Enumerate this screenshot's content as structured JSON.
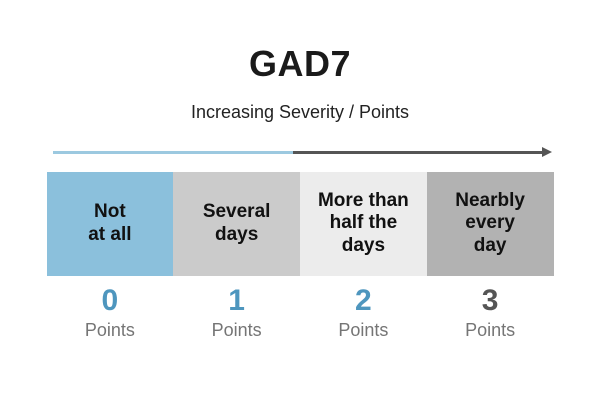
{
  "title": "GAD7",
  "subtitle": "Increasing Severity / Points",
  "arrow": {
    "low_color": "#9CC9E0",
    "high_color": "#555555",
    "direction": "left-to-right"
  },
  "colors": {
    "accent_blue": "#4E96BE",
    "box_blue": "#8BC0DC",
    "box_gray_light": "#ECECEC",
    "box_gray_medium": "#CBCBCB",
    "box_gray_dark": "#B2B2B2",
    "text_dark": "#111111",
    "points_gray": "#757575"
  },
  "scale": {
    "options": [
      {
        "label": "Not\nat all",
        "points": "0",
        "points_label": "Points",
        "box_color": "#8BC0DC",
        "number_color": "#4E96BE"
      },
      {
        "label": "Several\ndays",
        "points": "1",
        "points_label": "Points",
        "box_color": "#CBCBCB",
        "number_color": "#4E96BE"
      },
      {
        "label": "More than\nhalf the\ndays",
        "points": "2",
        "points_label": "Points",
        "box_color": "#ECECEC",
        "number_color": "#4E96BE"
      },
      {
        "label": "Nearbly\nevery\nday",
        "points": "3",
        "points_label": "Points",
        "box_color": "#B2B2B2",
        "number_color": "#555555"
      }
    ]
  }
}
